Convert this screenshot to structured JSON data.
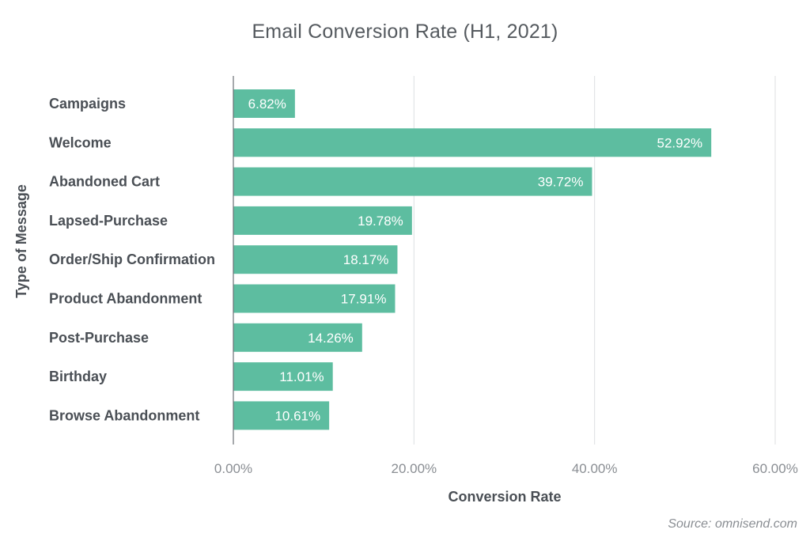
{
  "chart_data": {
    "type": "bar",
    "orientation": "horizontal",
    "title": "Email Conversion Rate (H1, 2021)",
    "xlabel": "Conversion Rate",
    "ylabel": "Type of Message",
    "categories": [
      "Campaigns",
      "Welcome",
      "Abandoned Cart",
      "Lapsed-Purchase",
      "Order/Ship Confirmation",
      "Product Abandonment",
      "Post-Purchase",
      "Birthday",
      "Browse Abandonment"
    ],
    "values": [
      6.82,
      52.92,
      39.72,
      19.78,
      18.17,
      17.91,
      14.26,
      11.01,
      10.61
    ],
    "value_labels": [
      "6.82%",
      "52.92%",
      "39.72%",
      "19.78%",
      "18.17%",
      "17.91%",
      "14.26%",
      "11.01%",
      "10.61%"
    ],
    "xlim": [
      0,
      60
    ],
    "x_ticks": [
      0,
      20,
      40,
      60
    ],
    "x_tick_labels": [
      "0.00%",
      "20.00%",
      "40.00%",
      "60.00%"
    ],
    "grid": true,
    "legend": "none",
    "bar_color": "#5dbda0",
    "source": "Source: omnisend.com"
  }
}
